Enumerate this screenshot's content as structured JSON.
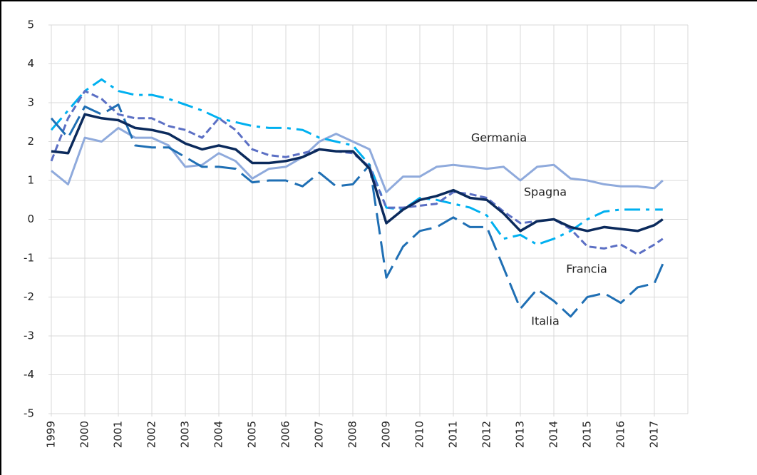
{
  "chart_data": {
    "type": "line",
    "x": [
      1999,
      1999.5,
      2000,
      2000.5,
      2001,
      2001.5,
      2002,
      2002.5,
      2003,
      2003.5,
      2004,
      2004.5,
      2005,
      2005.5,
      2006,
      2006.5,
      2007,
      2007.5,
      2008,
      2008.5,
      2009,
      2009.5,
      2010,
      2010.5,
      2011,
      2011.5,
      2012,
      2012.5,
      2013,
      2013.5,
      2014,
      2014.5,
      2015,
      2015.5,
      2016,
      2016.5,
      2017,
      2017.25
    ],
    "series": [
      {
        "name": "Germania",
        "color": "#8faadc",
        "dash": "solid",
        "values": [
          1.25,
          0.9,
          2.1,
          2.0,
          2.35,
          2.1,
          2.1,
          1.9,
          1.35,
          1.4,
          1.7,
          1.5,
          1.05,
          1.3,
          1.35,
          1.6,
          2.0,
          2.2,
          2.0,
          1.8,
          0.7,
          1.1,
          1.1,
          1.35,
          1.4,
          1.35,
          1.3,
          1.35,
          1.0,
          1.35,
          1.4,
          1.05,
          1.0,
          0.9,
          0.85,
          0.85,
          0.8,
          1.0
        ]
      },
      {
        "color": "#00b0f0",
        "dash": "dashdot",
        "values": [
          2.3,
          2.8,
          3.3,
          3.6,
          3.3,
          3.2,
          3.2,
          3.1,
          2.95,
          2.8,
          2.6,
          2.5,
          2.4,
          2.35,
          2.35,
          2.3,
          2.1,
          2.0,
          1.9,
          1.4,
          0.3,
          0.25,
          0.55,
          0.5,
          0.4,
          0.3,
          0.1,
          -0.5,
          -0.4,
          -0.65,
          -0.5,
          -0.3,
          0.0,
          0.2,
          0.25,
          0.25,
          0.25,
          0.25
        ]
      },
      {
        "name": "Francia",
        "color": "#5b6fc4",
        "dash": "dash",
        "values": [
          1.5,
          2.6,
          3.3,
          3.1,
          2.7,
          2.6,
          2.6,
          2.4,
          2.3,
          2.1,
          2.6,
          2.3,
          1.8,
          1.65,
          1.6,
          1.7,
          1.8,
          1.75,
          1.7,
          1.35,
          0.3,
          0.3,
          0.35,
          0.4,
          0.7,
          0.65,
          0.55,
          0.2,
          -0.1,
          -0.05,
          0.0,
          -0.25,
          -0.7,
          -0.75,
          -0.65,
          -0.9,
          -0.65,
          -0.5
        ]
      },
      {
        "name": "Italia",
        "color": "#1f6fb4",
        "dash": "longdash",
        "values": [
          2.6,
          2.1,
          2.9,
          2.7,
          2.95,
          1.9,
          1.85,
          1.85,
          1.6,
          1.35,
          1.35,
          1.3,
          0.95,
          1.0,
          1.0,
          0.85,
          1.2,
          0.85,
          0.9,
          1.4,
          -1.5,
          -0.7,
          -0.3,
          -0.2,
          0.05,
          -0.2,
          -0.2,
          -1.25,
          -2.3,
          -1.8,
          -2.1,
          -2.5,
          -2.0,
          -1.9,
          -2.15,
          -1.75,
          -1.65,
          -1.15
        ]
      },
      {
        "name": "Spagna",
        "color": "#0b2a5c",
        "dash": "solid",
        "values": [
          1.75,
          1.7,
          2.7,
          2.6,
          2.55,
          2.35,
          2.3,
          2.2,
          1.95,
          1.8,
          1.9,
          1.8,
          1.45,
          1.45,
          1.5,
          1.6,
          1.8,
          1.75,
          1.75,
          1.3,
          -0.1,
          0.25,
          0.5,
          0.6,
          0.75,
          0.55,
          0.5,
          0.15,
          -0.3,
          -0.05,
          0.0,
          -0.2,
          -0.3,
          -0.2,
          -0.25,
          -0.3,
          -0.15,
          0.0
        ]
      }
    ],
    "xlim": [
      1999,
      2018
    ],
    "ylim": [
      -5,
      5
    ],
    "xticks": [
      1999,
      2000,
      2001,
      2002,
      2003,
      2004,
      2005,
      2006,
      2007,
      2008,
      2009,
      2010,
      2011,
      2012,
      2013,
      2014,
      2015,
      2016,
      2017
    ],
    "yticks": [
      -5,
      -4,
      -3,
      -2,
      -1,
      0,
      1,
      2,
      3,
      4,
      5
    ],
    "grid": true
  }
}
